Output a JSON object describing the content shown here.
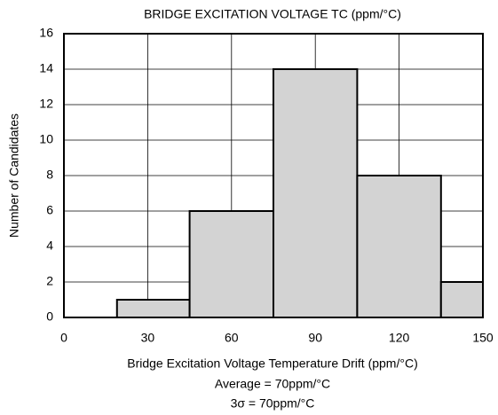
{
  "chart_data": {
    "type": "histogram",
    "title": "BRIDGE EXCITATION VOLTAGE TC (ppm/°C)",
    "x_label": "Bridge Excitation Voltage Temperature Drift (ppm/°C)",
    "y_label": "Number of Candidates",
    "annotations": [
      "Average = 70ppm/°C",
      "3σ = 70ppm/°C"
    ],
    "bins": [
      19,
      45,
      75,
      105,
      135,
      150
    ],
    "counts": [
      1,
      6,
      14,
      8,
      2
    ],
    "color": "#d3d3d3",
    "xlim": [
      0,
      150
    ],
    "xticks": [
      0,
      30,
      60,
      90,
      120,
      150
    ],
    "ylim": [
      0,
      16
    ],
    "yticks": [
      0,
      2,
      4,
      6,
      8,
      10,
      12,
      14,
      16
    ],
    "grid": true
  }
}
